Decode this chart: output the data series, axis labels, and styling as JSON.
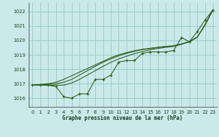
{
  "title": "Graphe pression niveau de la mer (hPa)",
  "background_color": "#cce9e9",
  "grid_color": "#99cccc",
  "line_color": "#2d5a1b",
  "xlim": [
    -0.5,
    23.5
  ],
  "ylim": [
    1015.4,
    1022.6
  ],
  "yticks": [
    1016,
    1017,
    1018,
    1019,
    1020,
    1021,
    1022
  ],
  "xticks": [
    0,
    1,
    2,
    3,
    4,
    5,
    6,
    7,
    8,
    9,
    10,
    11,
    12,
    13,
    14,
    15,
    16,
    17,
    18,
    19,
    20,
    21,
    22,
    23
  ],
  "series_main": [
    1016.9,
    1016.9,
    1016.9,
    1016.8,
    1016.1,
    1016.0,
    1016.3,
    1016.3,
    1017.3,
    1017.3,
    1017.6,
    1018.5,
    1018.6,
    1018.6,
    1019.1,
    1019.2,
    1019.2,
    1019.2,
    1019.3,
    1020.2,
    1019.9,
    1020.6,
    1021.4,
    1022.1
  ],
  "series_smooth1": [
    1016.9,
    1016.95,
    1017.0,
    1017.1,
    1017.3,
    1017.55,
    1017.8,
    1018.05,
    1018.3,
    1018.55,
    1018.8,
    1019.0,
    1019.15,
    1019.28,
    1019.38,
    1019.45,
    1019.52,
    1019.58,
    1019.62,
    1019.75,
    1019.9,
    1020.2,
    1021.1,
    1022.1
  ],
  "series_smooth2": [
    1016.9,
    1016.92,
    1016.95,
    1017.0,
    1017.1,
    1017.3,
    1017.6,
    1017.9,
    1018.2,
    1018.48,
    1018.72,
    1018.93,
    1019.1,
    1019.24,
    1019.36,
    1019.44,
    1019.51,
    1019.57,
    1019.62,
    1019.75,
    1019.92,
    1020.22,
    1021.05,
    1022.1
  ],
  "series_smooth3": [
    1016.9,
    1016.9,
    1016.9,
    1016.9,
    1016.9,
    1017.05,
    1017.3,
    1017.6,
    1017.9,
    1018.2,
    1018.48,
    1018.72,
    1018.9,
    1019.08,
    1019.22,
    1019.35,
    1019.44,
    1019.52,
    1019.58,
    1019.72,
    1019.9,
    1020.22,
    1021.05,
    1022.1
  ]
}
